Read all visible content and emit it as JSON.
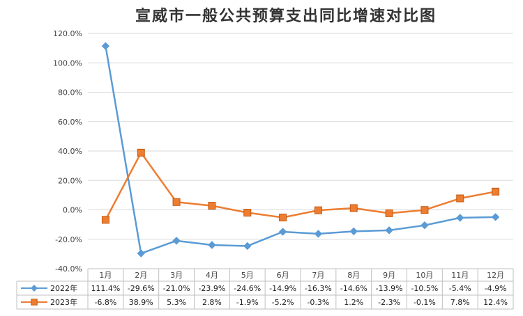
{
  "chart_data": {
    "type": "line",
    "title": "宣威市一般公共预算支出同比增速对比图",
    "categories": [
      "1月",
      "2月",
      "3月",
      "4月",
      "5月",
      "6月",
      "7月",
      "8月",
      "9月",
      "10月",
      "11月",
      "12月"
    ],
    "yticks": [
      "120.0%",
      "100.0%",
      "80.0%",
      "60.0%",
      "40.0%",
      "20.0%",
      "0.0%",
      "-20.0%",
      "-40.0%"
    ],
    "ylim": [
      -40,
      120
    ],
    "ystep": 20,
    "grid": true,
    "legend": "data-table",
    "series": [
      {
        "name": "2022年",
        "color": "#5b9bd5",
        "marker": "diamond",
        "values": [
          111.4,
          -29.6,
          -21.0,
          -23.9,
          -24.6,
          -14.9,
          -16.3,
          -14.6,
          -13.9,
          -10.5,
          -5.4,
          -4.9
        ],
        "labels": [
          "111.4%",
          "-29.6%",
          "-21.0%",
          "-23.9%",
          "-24.6%",
          "-14.9%",
          "-16.3%",
          "-14.6%",
          "-13.9%",
          "-10.5%",
          "-5.4%",
          "-4.9%"
        ]
      },
      {
        "name": "2023年",
        "color": "#ed7d31",
        "marker": "square",
        "values": [
          -6.8,
          38.9,
          5.3,
          2.8,
          -1.9,
          -5.2,
          -0.3,
          1.2,
          -2.3,
          -0.1,
          7.8,
          12.4
        ],
        "labels": [
          "-6.8%",
          "38.9%",
          "5.3%",
          "2.8%",
          "-1.9%",
          "-5.2%",
          "-0.3%",
          "1.2%",
          "-2.3%",
          "-0.1%",
          "7.8%",
          "12.4%"
        ]
      }
    ]
  }
}
